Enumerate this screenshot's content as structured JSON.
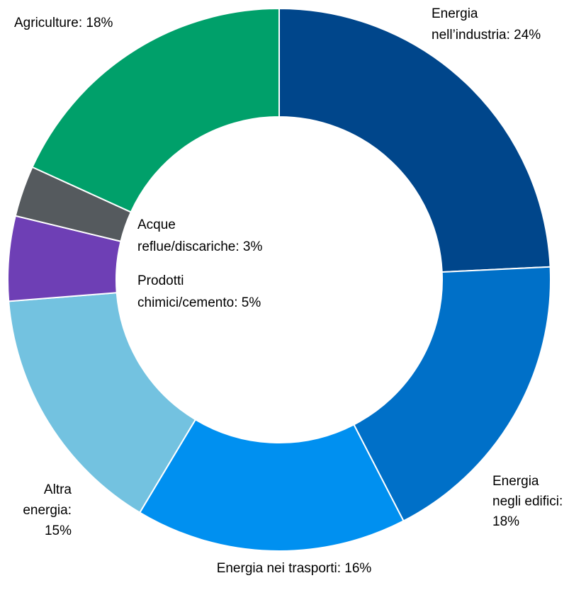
{
  "chart_data": {
    "type": "donut",
    "values": [
      24,
      18,
      16,
      15,
      5,
      3,
      18
    ],
    "value_labels": [
      [
        "Energia",
        "nell’industria: 24%"
      ],
      [
        "Energia",
        "negli edifici:",
        "18%"
      ],
      [
        "Energia nei trasporti: 16%"
      ],
      [
        "Altra",
        "energia:",
        "15%"
      ],
      [
        "Prodotti",
        "chimici/cemento: 5%"
      ],
      [
        "Acque",
        "reflue/discariche: 3%"
      ],
      [
        "Agriculture: 18%"
      ]
    ],
    "colors": [
      "#00468b",
      "#0070c8",
      "#0090f0",
      "#73c2e0",
      "#6e3fb5",
      "#555a5e",
      "#00a06a"
    ]
  }
}
